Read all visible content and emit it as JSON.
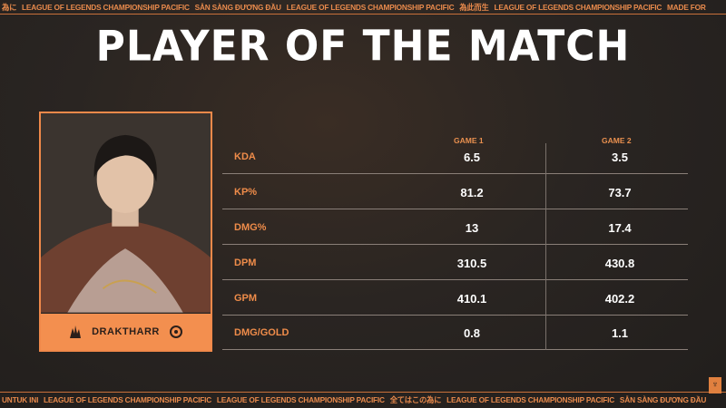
{
  "ticker_top": [
    "為に",
    "LEAGUE OF LEGENDS CHAMPIONSHIP PACIFIC",
    "SẴN SÀNG ĐƯƠNG ĐẦU",
    "LEAGUE OF LEGENDS CHAMPIONSHIP PACIFIC",
    "為此而生",
    "LEAGUE OF LEGENDS CHAMPIONSHIP PACIFIC",
    "MADE FOR"
  ],
  "ticker_bottom": [
    "UNTUK INI",
    "LEAGUE OF LEGENDS CHAMPIONSHIP PACIFIC",
    "LEAGUE OF LEGENDS CHAMPIONSHIP PACIFIC",
    "全てはこの為に",
    "LEAGUE OF LEGENDS CHAMPIONSHIP PACIFIC",
    "SẴN SÀNG ĐƯƠNG ĐẦU"
  ],
  "title": "PLAYER OF THE MATCH",
  "player": {
    "name": "DRAKTHARR",
    "role_icon": "league-role-icon",
    "team_icon": "gam-esports-logo"
  },
  "table": {
    "headers": [
      "GAME 1",
      "GAME 2"
    ],
    "rows": [
      {
        "label": "KDA",
        "game1": "6.5",
        "game2": "3.5"
      },
      {
        "label": "KP%",
        "game1": "81.2",
        "game2": "73.7"
      },
      {
        "label": "DMG%",
        "game1": "13",
        "game2": "17.4"
      },
      {
        "label": "DPM",
        "game1": "310.5",
        "game2": "430.8"
      },
      {
        "label": "GPM",
        "game1": "410.1",
        "game2": "402.2"
      },
      {
        "label": "DMG/GOLD",
        "game1": "0.8",
        "game2": "1.1"
      }
    ]
  },
  "colors": {
    "accent": "#f38f4f",
    "background": "#2a2522"
  }
}
